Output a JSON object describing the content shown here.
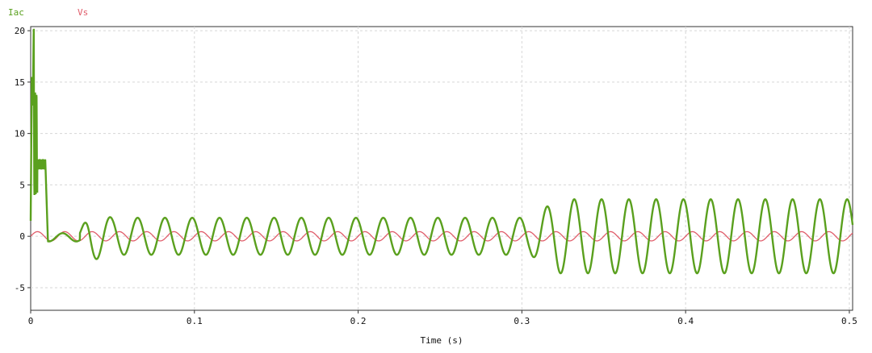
{
  "chart_data": {
    "type": "line",
    "xlabel": "Time (s)",
    "ylabel": "",
    "xlim": [
      0,
      0.502
    ],
    "ylim": [
      -7.2,
      20.4
    ],
    "x_ticks": [
      "0",
      "0.1",
      "0.2",
      "0.3",
      "0.4",
      "0.5"
    ],
    "y_ticks": [
      "20",
      "15",
      "10",
      "5",
      "0",
      "-5"
    ],
    "grid": true,
    "legend_position": "top-left",
    "series": [
      {
        "name": "Iac",
        "color": "#5aa01e",
        "description_points": {
          "startup_peak": 18.3,
          "plateau": 7.0,
          "amplitude_0.03_to_0.30": 1.8,
          "amplitude_0.32_to_0.50": 3.6,
          "frequency_hz": 60
        }
      },
      {
        "name": "Vs",
        "color": "#e05c6a",
        "description_points": {
          "amplitude": 0.45,
          "frequency_hz": 60
        }
      }
    ]
  }
}
